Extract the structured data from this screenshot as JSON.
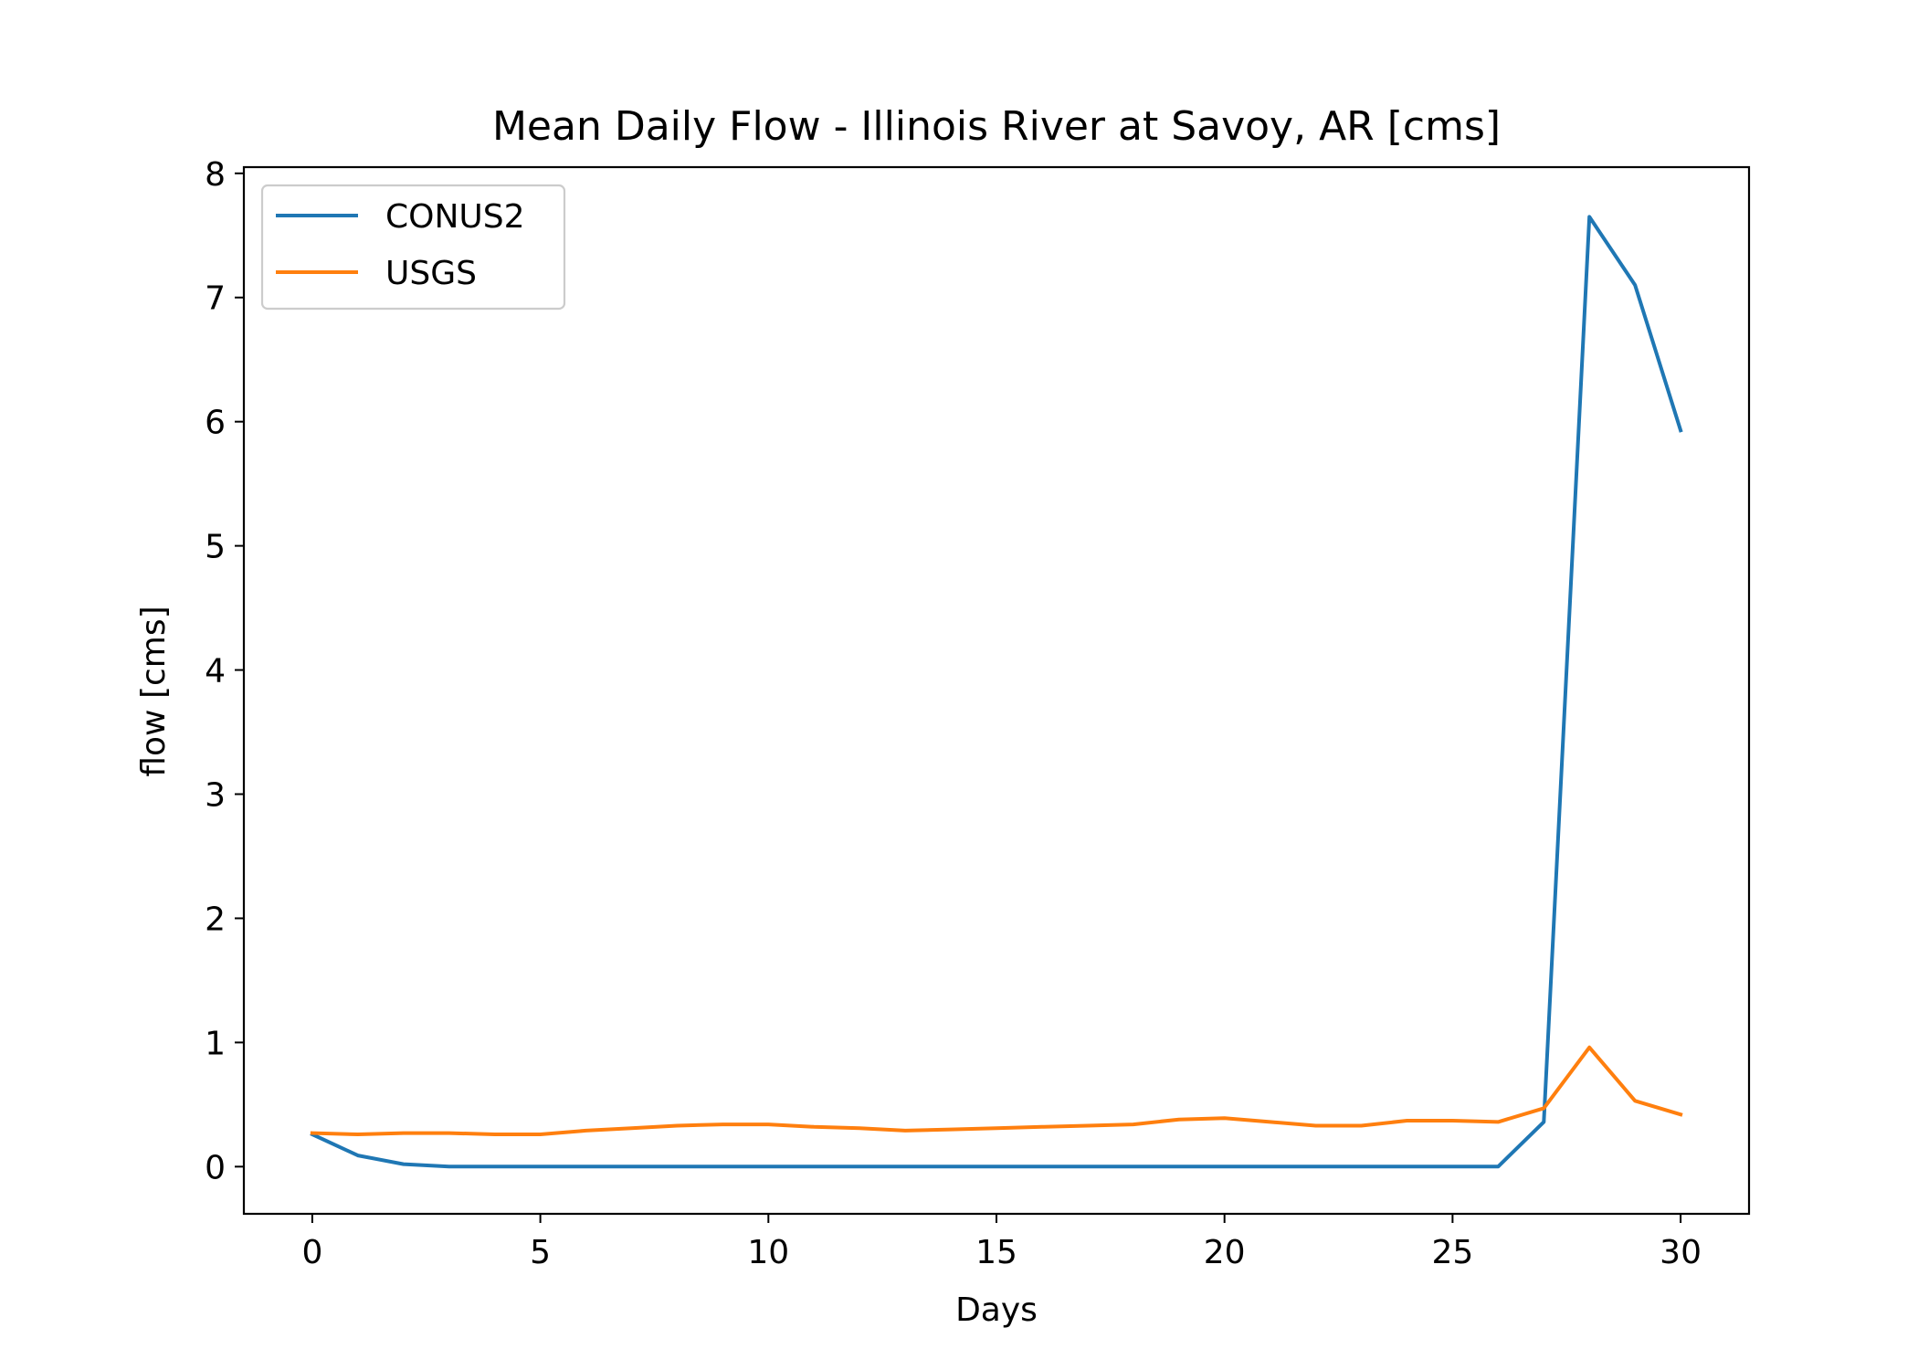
{
  "chart_data": {
    "type": "line",
    "title": "Mean Daily Flow - Illinois River at Savoy, AR [cms]",
    "xlabel": "Days",
    "ylabel": "flow [cms]",
    "xlim": [
      -1.5,
      31.5
    ],
    "ylim": [
      -0.38,
      8.05
    ],
    "xticks": [
      0,
      5,
      10,
      15,
      20,
      25,
      30
    ],
    "yticks": [
      0,
      1,
      2,
      3,
      4,
      5,
      6,
      7,
      8
    ],
    "grid": false,
    "legend": {
      "position": "top-left"
    },
    "x": [
      0,
      1,
      2,
      3,
      4,
      5,
      6,
      7,
      8,
      9,
      10,
      11,
      12,
      13,
      14,
      15,
      16,
      17,
      18,
      19,
      20,
      21,
      22,
      23,
      24,
      25,
      26,
      27,
      28,
      29,
      30
    ],
    "series": [
      {
        "name": "CONUS2",
        "color": "#1f77b4",
        "values": [
          0.26,
          0.09,
          0.02,
          0.0,
          0.0,
          0.0,
          0.0,
          0.0,
          0.0,
          0.0,
          0.0,
          0.0,
          0.0,
          0.0,
          0.0,
          0.0,
          0.0,
          0.0,
          0.0,
          0.0,
          0.0,
          0.0,
          0.0,
          0.0,
          0.0,
          0.0,
          0.0,
          0.36,
          7.65,
          7.1,
          5.93
        ]
      },
      {
        "name": "USGS",
        "color": "#ff7f0e",
        "values": [
          0.27,
          0.26,
          0.27,
          0.27,
          0.26,
          0.26,
          0.29,
          0.31,
          0.33,
          0.34,
          0.34,
          0.32,
          0.31,
          0.29,
          0.3,
          0.31,
          0.32,
          0.33,
          0.34,
          0.38,
          0.39,
          0.36,
          0.33,
          0.33,
          0.37,
          0.37,
          0.36,
          0.47,
          0.96,
          0.53,
          0.42
        ]
      }
    ]
  }
}
